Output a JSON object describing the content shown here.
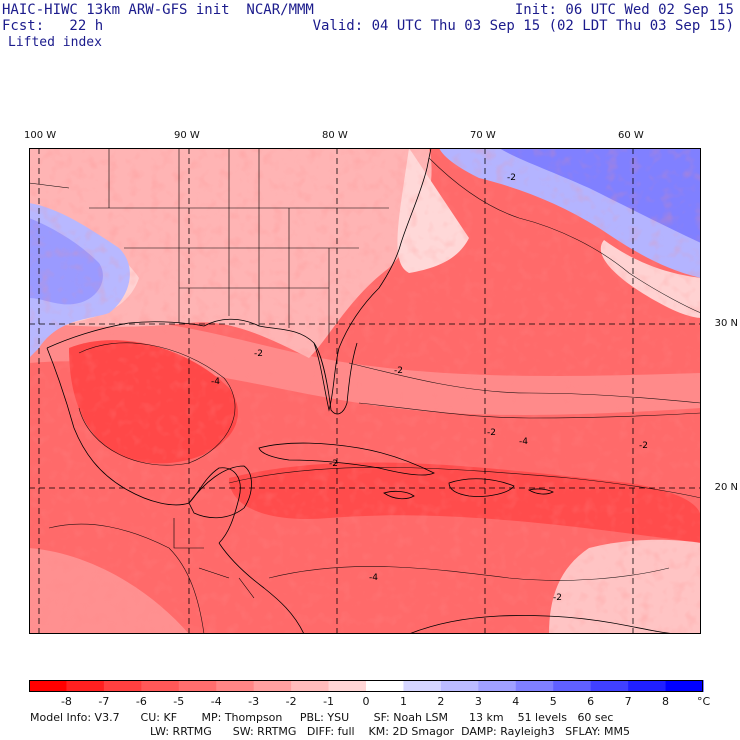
{
  "header": {
    "left_line1": "HAIC-HIWC 13km ARW-GFS init  NCAR/MMM",
    "left_line2": "Fcst:   22 h",
    "right_line1": "Init: 06 UTC Wed 02 Sep 15",
    "right_line2": "Valid: 04 UTC Thu 03 Sep 15 (02 LDT Thu 03 Sep 15)",
    "field": "Lifted index"
  },
  "map": {
    "lon_labels": [
      "100 W",
      "90 W",
      "80 W",
      "70 W",
      "60 W"
    ],
    "lat_labels": [
      "30 N",
      "20 N"
    ],
    "contour_labels": [
      "-2",
      "-2",
      "-2",
      "-2",
      "-4",
      "-2",
      "-4",
      "-2",
      "-4",
      "-2"
    ]
  },
  "legend": {
    "ticks": [
      "-8",
      "-7",
      "-6",
      "-5",
      "-4",
      "-3",
      "-2",
      "-1",
      "0",
      "1",
      "2",
      "3",
      "4",
      "5",
      "6",
      "7",
      "8"
    ],
    "unit": "°C",
    "colors": [
      "#ff0000",
      "#ff2020",
      "#ff4040",
      "#ff5858",
      "#ff6e6e",
      "#ff8686",
      "#ffa0a0",
      "#ffbcbc",
      "#ffd6d6",
      "#ffffff",
      "#d6d6ff",
      "#bcbcff",
      "#a0a0ff",
      "#8080ff",
      "#6060ff",
      "#4040ff",
      "#2020ff",
      "#0000ff"
    ]
  },
  "model_info": {
    "line1": "Model Info: V3.7      CU: KF       MP: Thompson     PBL: YSU       SF: Noah LSM      13 km    51 levels   60 sec",
    "line2": "LW: RRTMG      SW: RRTMG   DIFF: full    KM: 2D Smagor  DAMP: Rayleigh3   SFLAY: MM5"
  }
}
